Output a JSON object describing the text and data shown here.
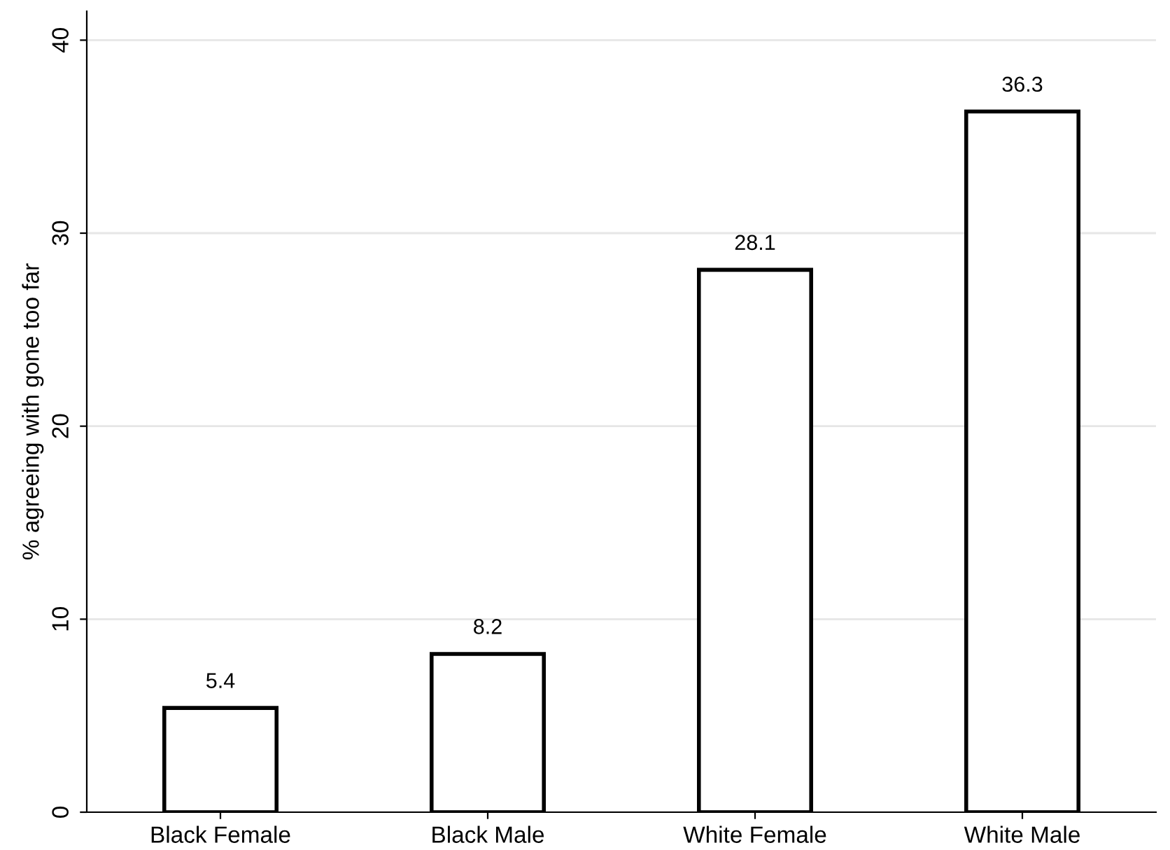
{
  "chart_data": {
    "type": "bar",
    "ylabel": "% agreeing with gone too far",
    "categories": [
      "Black Female",
      "Black Male",
      "White Female",
      "White Male"
    ],
    "values": [
      5.4,
      8.2,
      28.1,
      36.3
    ],
    "color": "#ffffff",
    "ylim": [
      0,
      41.5
    ],
    "yticks": [
      0,
      10,
      20,
      30,
      40
    ],
    "grid": "y",
    "data_labels": true
  }
}
